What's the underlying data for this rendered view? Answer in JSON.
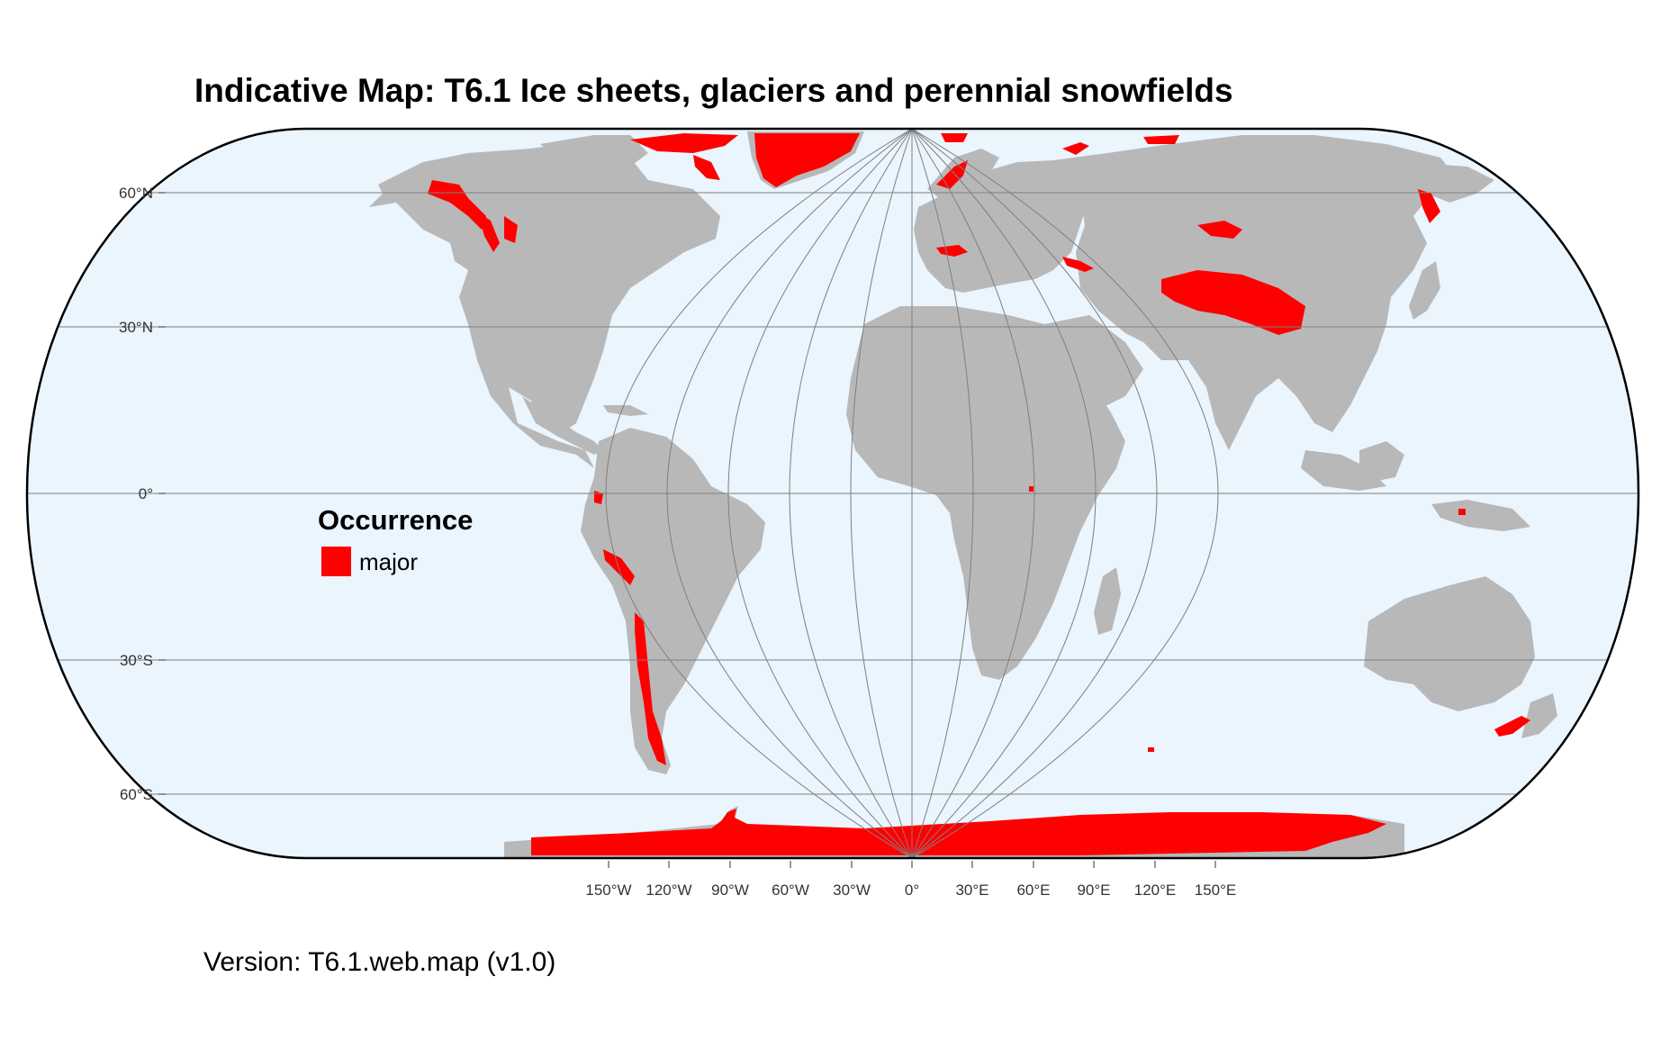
{
  "title": "Indicative Map: T6.1 Ice sheets, glaciers and perennial snowfields",
  "version": "Version: T6.1.web.map (v1.0)",
  "legend": {
    "title": "Occurrence",
    "items": [
      {
        "label": "major",
        "color": "#ff0000"
      }
    ]
  },
  "colors": {
    "ocean": "#eaf5fe",
    "land": "#b8b8b8",
    "occurrence": "#ff0000",
    "graticule": "#7f7f7f",
    "outline": "#000000"
  },
  "axes": {
    "lat_labels": [
      "60°N",
      "30°N",
      "0°",
      "30°S",
      "60°S"
    ],
    "lon_labels": [
      "150°W",
      "120°W",
      "90°W",
      "60°W",
      "30°W",
      "0°",
      "30°E",
      "60°E",
      "90°E",
      "120°E",
      "150°E"
    ]
  }
}
